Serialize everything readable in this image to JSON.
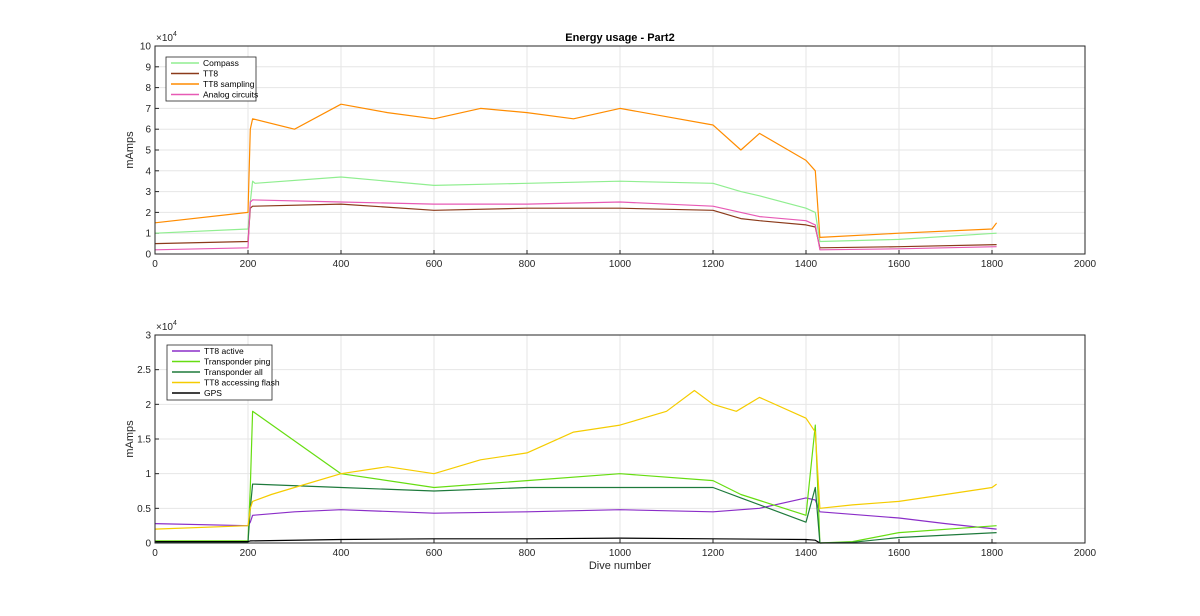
{
  "chart_data": [
    {
      "type": "line",
      "title": "Energy usage - Part2",
      "xlabel": "",
      "ylabel": "mAmps",
      "xlim": [
        0,
        2000
      ],
      "ylim": [
        0,
        100000
      ],
      "x_ticks": [
        0,
        200,
        400,
        600,
        800,
        1000,
        1200,
        1400,
        1600,
        1800,
        2000
      ],
      "y_ticks": [
        0,
        1,
        2,
        3,
        4,
        5,
        6,
        7,
        8,
        9,
        10
      ],
      "y_exponent_label": "×10",
      "y_exponent": "4",
      "grid": true,
      "legend_position": "top-left",
      "series": [
        {
          "name": "Compass",
          "color": "#90ee90",
          "x": [
            0,
            200,
            205,
            210,
            215,
            400,
            600,
            800,
            1000,
            1200,
            1260,
            1300,
            1400,
            1420,
            1430,
            1600,
            1810
          ],
          "values": [
            10000,
            12000,
            25000,
            35000,
            34000,
            37000,
            33000,
            34000,
            35000,
            34000,
            30000,
            28000,
            22000,
            20000,
            6000,
            7000,
            10000
          ]
        },
        {
          "name": "TT8",
          "color": "#8b3a1a",
          "x": [
            0,
            200,
            205,
            210,
            400,
            600,
            800,
            1000,
            1200,
            1260,
            1300,
            1400,
            1420,
            1430,
            1600,
            1810
          ],
          "values": [
            5000,
            6000,
            22000,
            23000,
            24000,
            21000,
            22000,
            22000,
            21000,
            17000,
            16000,
            14000,
            13000,
            3000,
            3500,
            4500
          ]
        },
        {
          "name": "TT8 sampling",
          "color": "#ff8c00",
          "x": [
            0,
            200,
            205,
            210,
            300,
            400,
            500,
            600,
            700,
            800,
            900,
            1000,
            1100,
            1200,
            1260,
            1300,
            1400,
            1420,
            1430,
            1600,
            1800,
            1810
          ],
          "values": [
            15000,
            20000,
            60000,
            65000,
            60000,
            72000,
            68000,
            65000,
            70000,
            68000,
            65000,
            70000,
            66000,
            62000,
            50000,
            58000,
            45000,
            40000,
            8000,
            10000,
            12000,
            15000
          ]
        },
        {
          "name": "Analog circuits",
          "color": "#e75ab5",
          "x": [
            0,
            200,
            205,
            210,
            400,
            600,
            800,
            1000,
            1200,
            1260,
            1300,
            1400,
            1420,
            1430,
            1600,
            1810
          ],
          "values": [
            2000,
            3000,
            25000,
            26000,
            25000,
            24000,
            24000,
            25000,
            23000,
            20000,
            18000,
            16000,
            14000,
            2000,
            2500,
            3500
          ]
        }
      ]
    },
    {
      "type": "line",
      "title": "",
      "xlabel": "Dive number",
      "ylabel": "mAmps",
      "xlim": [
        0,
        2000
      ],
      "ylim": [
        0,
        30000
      ],
      "x_ticks": [
        0,
        200,
        400,
        600,
        800,
        1000,
        1200,
        1400,
        1600,
        1800,
        2000
      ],
      "y_ticks": [
        "0",
        "0.5",
        "1",
        "1.5",
        "2",
        "2.5",
        "3"
      ],
      "y_exponent_label": "×10",
      "y_exponent": "4",
      "grid": true,
      "legend_position": "top-left",
      "series": [
        {
          "name": "TT8 active",
          "color": "#8b2ec8",
          "x": [
            0,
            200,
            205,
            210,
            300,
            400,
            600,
            800,
            1000,
            1200,
            1300,
            1400,
            1420,
            1430,
            1600,
            1700,
            1810
          ],
          "values": [
            2800,
            2500,
            3000,
            4000,
            4500,
            4800,
            4300,
            4500,
            4800,
            4500,
            5000,
            6500,
            6200,
            4500,
            3600,
            2800,
            2000
          ]
        },
        {
          "name": "Transponder ping",
          "color": "#66dd11",
          "x": [
            0,
            200,
            205,
            210,
            400,
            600,
            800,
            1000,
            1200,
            1260,
            1400,
            1420,
            1430,
            1500,
            1600,
            1810
          ],
          "values": [
            300,
            300,
            8000,
            19000,
            10000,
            8000,
            9000,
            10000,
            9000,
            7000,
            4000,
            17000,
            0,
            200,
            1500,
            2500
          ]
        },
        {
          "name": "Transponder all",
          "color": "#1e7a3c",
          "x": [
            0,
            200,
            205,
            210,
            400,
            600,
            800,
            1000,
            1200,
            1260,
            1400,
            1420,
            1430,
            1500,
            1600,
            1810
          ],
          "values": [
            100,
            100,
            5000,
            8500,
            8000,
            7500,
            8000,
            8000,
            8000,
            6500,
            3000,
            8000,
            0,
            100,
            800,
            1500
          ]
        },
        {
          "name": "TT8 accessing flash",
          "color": "#f5cc00",
          "x": [
            0,
            200,
            205,
            210,
            250,
            300,
            400,
            500,
            600,
            700,
            800,
            900,
            1000,
            1100,
            1160,
            1200,
            1250,
            1300,
            1400,
            1420,
            1430,
            1500,
            1600,
            1700,
            1800,
            1810
          ],
          "values": [
            2000,
            2500,
            5000,
            6000,
            7000,
            8000,
            10000,
            11000,
            10000,
            12000,
            13000,
            16000,
            17000,
            19000,
            22000,
            20000,
            19000,
            21000,
            18000,
            16000,
            5000,
            5500,
            6000,
            7000,
            8000,
            8500
          ]
        },
        {
          "name": "GPS",
          "color": "#000000",
          "x": [
            0,
            200,
            205,
            400,
            600,
            800,
            1000,
            1200,
            1400,
            1420,
            1430,
            1810
          ],
          "values": [
            200,
            200,
            300,
            500,
            600,
            600,
            700,
            600,
            500,
            400,
            0,
            0
          ]
        }
      ]
    }
  ]
}
